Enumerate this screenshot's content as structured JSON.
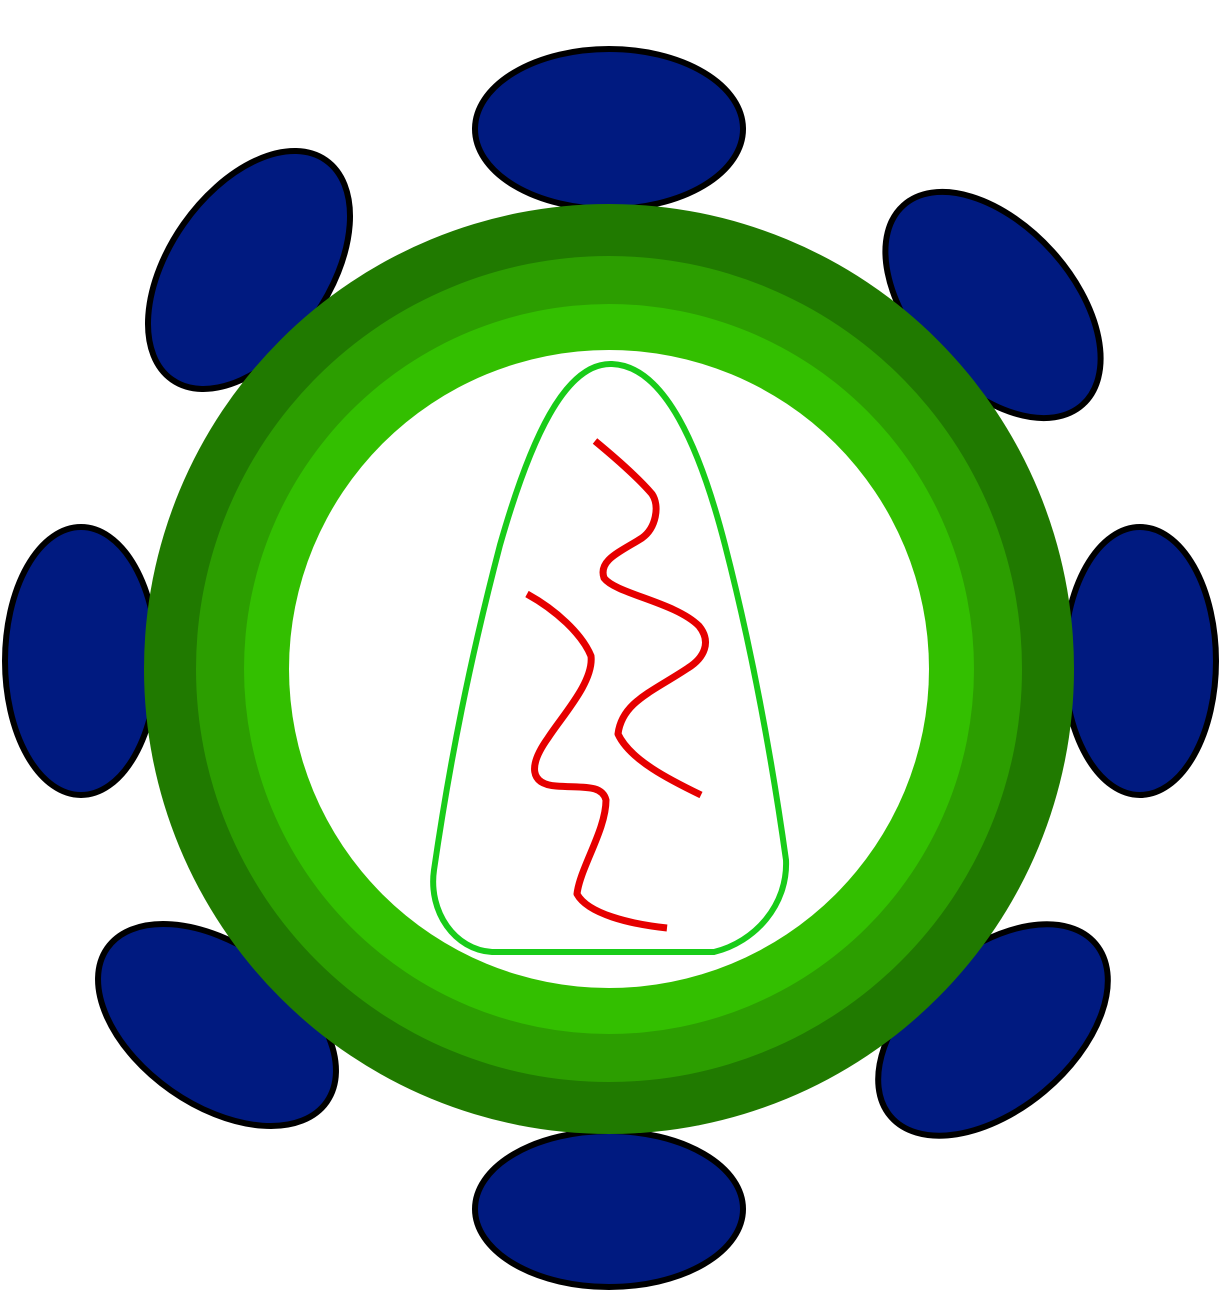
{
  "diagram": {
    "subject": "virus-particle",
    "colors": {
      "background": "#ffffff",
      "glycoprotein_spike_fill": "#001a80",
      "glycoprotein_spike_stroke": "#000000",
      "envelope_outer": "#207a00",
      "envelope_middle": "#2c9e00",
      "envelope_inner": "#33bf00",
      "interior": "#ffffff",
      "capsid_outline": "#19cc19",
      "rna_strand": "#e60000"
    },
    "parts": {
      "glycoprotein_spike_count": 8,
      "envelope_layer_count": 3,
      "capsid_shape": "cone",
      "rna_strand_count": 2
    }
  }
}
